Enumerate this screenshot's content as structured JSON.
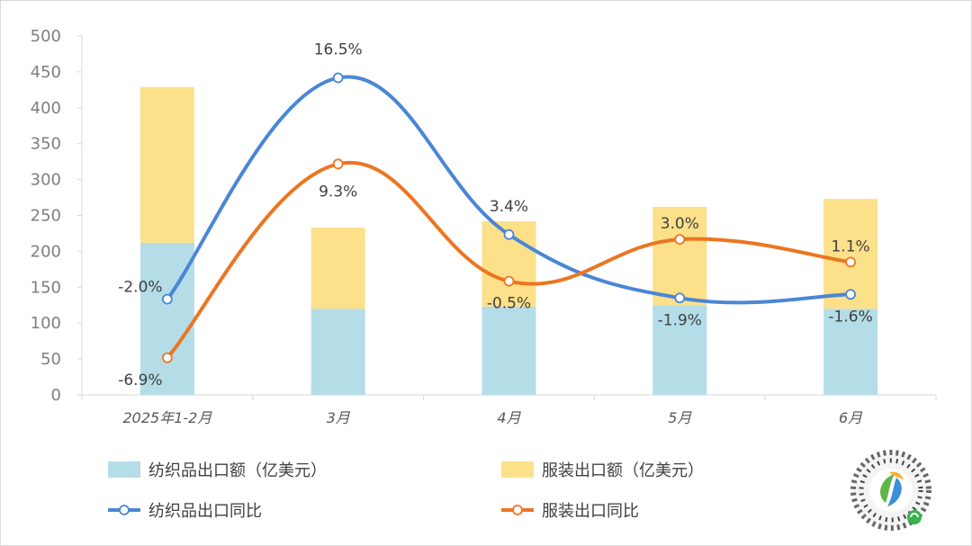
{
  "chart_data": {
    "type": "bar+line",
    "categories": [
      "2025年1-2月",
      "3月",
      "4月",
      "5月",
      "6月"
    ],
    "ylim": [
      0,
      500
    ],
    "yticks": [
      0,
      50,
      100,
      150,
      200,
      250,
      300,
      350,
      400,
      450,
      500
    ],
    "bars_stacked": [
      {
        "name": "纺织品出口额（亿美元）",
        "color": "#b4dde8",
        "values": [
          212,
          120,
          123,
          125,
          120
        ]
      },
      {
        "name": "服装出口额（亿美元）",
        "color": "#fde08a",
        "values": [
          217,
          113,
          119,
          137,
          153
        ]
      }
    ],
    "lines": [
      {
        "name": "纺织品出口同比",
        "color": "#4a86d6",
        "values": [
          -2.0,
          16.5,
          3.4,
          -1.9,
          -1.6
        ],
        "labels": [
          "-2.0%",
          "16.5%",
          "3.4%",
          "-1.9%",
          "-1.6%"
        ]
      },
      {
        "name": "服装出口同比",
        "color": "#ed7520",
        "values": [
          -6.9,
          9.3,
          -0.5,
          3.0,
          1.1
        ],
        "labels": [
          "-6.9%",
          "9.3%",
          "-0.5%",
          "3.0%",
          "1.1%"
        ]
      }
    ],
    "grid": false,
    "legend_position": "bottom"
  },
  "logo": {
    "icon": "mini-program-code-icon"
  }
}
